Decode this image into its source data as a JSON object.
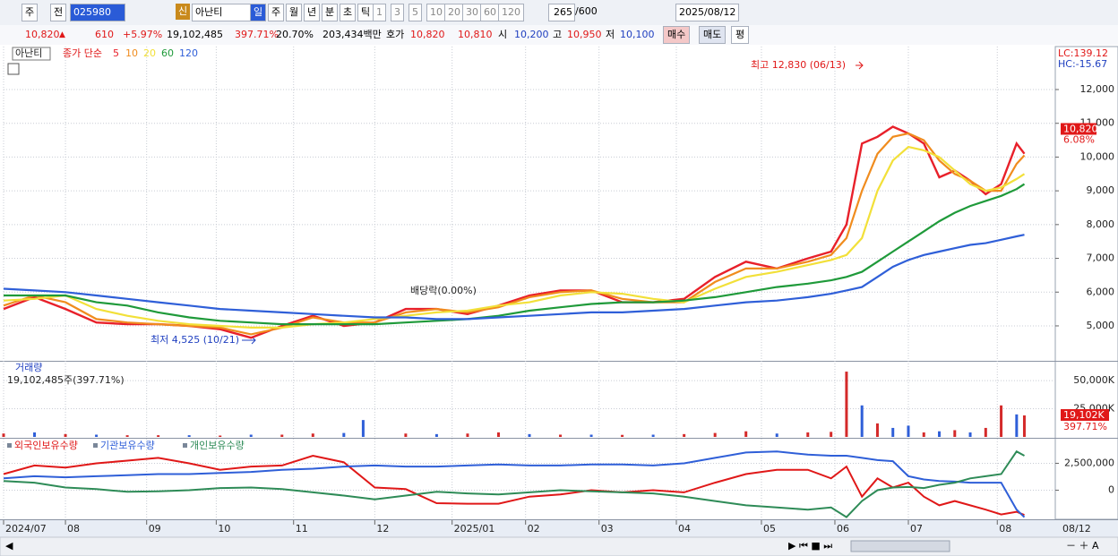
{
  "toolbar": {
    "period": "주",
    "prev": "전",
    "code": "025980",
    "new_tag": "신",
    "name": "아난티",
    "periods": [
      "일",
      "주",
      "월",
      "년",
      "분",
      "초",
      "틱"
    ],
    "intervals": [
      "1",
      "3",
      "5",
      "10",
      "20",
      "30",
      "60",
      "120"
    ],
    "count": "265",
    "max": "/600",
    "date": "2025/08/12"
  },
  "info": {
    "price": "10,820",
    "arrow": "▲",
    "change": "610",
    "change_pct": "+5.97%",
    "volume": "19,102,485",
    "volume_ratio": "397.71%",
    "turnover": "20.70%",
    "amount": "203,434백만",
    "quote_label": "호가",
    "ask": "10,820",
    "bid": "10,810",
    "open_label": "시",
    "open": "10,200",
    "high_label": "고",
    "high": "10,950",
    "low_label": "저",
    "low": "10,100",
    "buy": "매수",
    "sell": "매도",
    "avg": "평"
  },
  "chart_data": [
    {
      "type": "line",
      "title": "아난티",
      "subtitle": "종가 단순",
      "x": [
        0,
        8,
        16,
        24,
        32,
        40,
        48,
        56,
        64,
        72,
        80,
        88,
        96,
        104,
        112,
        120,
        128,
        136,
        144,
        152,
        160,
        168,
        176,
        184,
        192,
        200,
        208,
        214,
        218,
        222,
        226,
        230,
        234,
        238,
        242,
        246,
        250,
        254,
        258,
        262,
        264
      ],
      "series": [
        {
          "name": "5",
          "color": "#e8202a",
          "values": [
            5500,
            5850,
            5500,
            5100,
            5050,
            5050,
            5000,
            4900,
            4650,
            5000,
            5300,
            5000,
            5100,
            5500,
            5500,
            5350,
            5600,
            5900,
            6050,
            6050,
            5700,
            5700,
            5800,
            6450,
            6900,
            6700,
            7000,
            7200,
            8000,
            10400,
            10600,
            10900,
            10700,
            10400,
            9400,
            9600,
            9300,
            8900,
            9200,
            10400,
            10100
          ]
        },
        {
          "name": "10",
          "color": "#f08c1e",
          "values": [
            5600,
            5900,
            5700,
            5200,
            5100,
            5050,
            5000,
            4950,
            4750,
            4950,
            5250,
            5100,
            5100,
            5400,
            5500,
            5400,
            5550,
            5850,
            6000,
            6050,
            5800,
            5700,
            5700,
            6300,
            6700,
            6700,
            6900,
            7100,
            7600,
            9000,
            10100,
            10600,
            10700,
            10500,
            9900,
            9500,
            9300,
            9000,
            9000,
            9800,
            10050
          ]
        },
        {
          "name": "20",
          "color": "#f2e039",
          "values": [
            5750,
            5800,
            5900,
            5500,
            5300,
            5150,
            5050,
            5000,
            4950,
            4950,
            5050,
            5100,
            5200,
            5300,
            5400,
            5450,
            5600,
            5700,
            5900,
            6000,
            5950,
            5800,
            5700,
            6100,
            6450,
            6600,
            6800,
            6950,
            7100,
            7600,
            9000,
            9900,
            10300,
            10200,
            10000,
            9600,
            9200,
            9000,
            9100,
            9350,
            9500
          ]
        },
        {
          "name": "60",
          "color": "#1f9a3a",
          "values": [
            5900,
            5900,
            5900,
            5700,
            5600,
            5400,
            5250,
            5150,
            5100,
            5050,
            5050,
            5050,
            5050,
            5100,
            5150,
            5200,
            5300,
            5450,
            5550,
            5650,
            5700,
            5700,
            5750,
            5850,
            6000,
            6150,
            6250,
            6350,
            6450,
            6600,
            6900,
            7200,
            7500,
            7800,
            8100,
            8350,
            8550,
            8700,
            8850,
            9050,
            9200
          ]
        },
        {
          "name": "120",
          "color": "#2f5fd8",
          "values": [
            6100,
            6050,
            6000,
            5900,
            5800,
            5700,
            5600,
            5500,
            5450,
            5400,
            5350,
            5300,
            5250,
            5250,
            5200,
            5200,
            5250,
            5300,
            5350,
            5400,
            5400,
            5450,
            5500,
            5600,
            5700,
            5750,
            5850,
            5950,
            6050,
            6150,
            6450,
            6750,
            6950,
            7100,
            7200,
            7300,
            7400,
            7450,
            7550,
            7650,
            7700
          ]
        }
      ],
      "xlim": [
        0,
        272
      ],
      "ylim": [
        3965,
        13273
      ],
      "yticks": [
        {
          "value": 5000,
          "label": "5,000"
        },
        {
          "value": 6000,
          "label": "6,000"
        },
        {
          "value": 7000,
          "label": "7,000"
        },
        {
          "value": 8000,
          "label": "8,000"
        },
        {
          "value": 9000,
          "label": "9,000"
        },
        {
          "value": 10000,
          "label": "10,000"
        },
        {
          "value": 11000,
          "label": "11,000"
        },
        {
          "value": 12000,
          "label": "12,000"
        }
      ],
      "xticks": [
        {
          "value": 0,
          "label": "2024/07"
        },
        {
          "value": 16,
          "label": "08"
        },
        {
          "value": 37,
          "label": "09"
        },
        {
          "value": 55,
          "label": "10"
        },
        {
          "value": 75,
          "label": "11"
        },
        {
          "value": 96,
          "label": "12"
        },
        {
          "value": 116,
          "label": "2025/01"
        },
        {
          "value": 135,
          "label": "02"
        },
        {
          "value": 154,
          "label": "03"
        },
        {
          "value": 174,
          "label": "04"
        },
        {
          "value": 196,
          "label": "05"
        },
        {
          "value": 215,
          "label": "06"
        },
        {
          "value": 234,
          "label": "07"
        },
        {
          "value": 257,
          "label": "08"
        }
      ],
      "grid": true,
      "annotations": [
        "최고 12,830 (06/13)",
        "최저 4,525 (10/21)",
        "배당락(0.00%)"
      ],
      "last_price": {
        "value": 10820,
        "label": "10,820"
      },
      "change_label": "6.08%",
      "lc": "LC:139.12",
      "hc": "HC:-15.67",
      "end_date": "08/12"
    },
    {
      "type": "bar",
      "title": "거래량",
      "subtitle": "19,102,485주(397.71%)",
      "x": [
        0,
        8,
        16,
        24,
        32,
        40,
        48,
        56,
        64,
        72,
        80,
        88,
        93,
        104,
        112,
        120,
        128,
        136,
        144,
        152,
        160,
        168,
        176,
        184,
        192,
        200,
        208,
        214,
        218,
        222,
        226,
        230,
        234,
        238,
        242,
        246,
        250,
        254,
        258,
        262,
        264
      ],
      "values": [
        3000,
        4000,
        2500,
        2000,
        1500,
        1500,
        1500,
        1200,
        2000,
        2000,
        3000,
        3500,
        15000,
        3000,
        2500,
        3000,
        4000,
        2500,
        2000,
        2000,
        1800,
        2000,
        2500,
        3500,
        5000,
        3000,
        4000,
        4500,
        58000,
        28000,
        12000,
        8000,
        10000,
        4000,
        5000,
        6000,
        4000,
        8000,
        28000,
        20000,
        19102
      ],
      "colors": [
        "#d42a2a",
        "#2f5fd8",
        "#d42a2a",
        "#2f5fd8",
        "#d42a2a",
        "#d42a2a",
        "#2f5fd8",
        "#d42a2a",
        "#2f5fd8",
        "#d42a2a",
        "#d42a2a",
        "#2f5fd8",
        "#2f5fd8",
        "#d42a2a",
        "#2f5fd8",
        "#d42a2a",
        "#d42a2a",
        "#2f5fd8",
        "#d42a2a",
        "#2f5fd8",
        "#d42a2a",
        "#2f5fd8",
        "#d42a2a",
        "#d42a2a",
        "#d42a2a",
        "#2f5fd8",
        "#d42a2a",
        "#d42a2a",
        "#d42a2a",
        "#2f5fd8",
        "#d42a2a",
        "#2f5fd8",
        "#2f5fd8",
        "#d42a2a",
        "#2f5fd8",
        "#d42a2a",
        "#2f5fd8",
        "#d42a2a",
        "#d42a2a",
        "#2f5fd8",
        "#d42a2a"
      ],
      "ylim": [
        0,
        66000
      ],
      "yticks": [
        {
          "value": 50000,
          "label": "50,000K"
        },
        {
          "value": 25000,
          "label": "25,000K"
        }
      ],
      "last_volume": {
        "value": 19102,
        "label": "19,102K"
      },
      "ratio_label": "397.71%"
    },
    {
      "type": "line",
      "x": [
        0,
        8,
        16,
        24,
        32,
        40,
        48,
        56,
        64,
        72,
        80,
        88,
        96,
        104,
        112,
        120,
        128,
        136,
        144,
        152,
        160,
        168,
        176,
        184,
        192,
        200,
        208,
        214,
        218,
        222,
        226,
        230,
        234,
        238,
        242,
        246,
        250,
        254,
        258,
        262,
        264
      ],
      "series": [
        {
          "name": "외국인보유수량",
          "color": "#e01818",
          "values": [
            1500000,
            2300000,
            2100000,
            2500000,
            2750000,
            3000000,
            2500000,
            1900000,
            2200000,
            2300000,
            3200000,
            2600000,
            250000,
            100000,
            -1200000,
            -1250000,
            -1250000,
            -600000,
            -400000,
            0,
            -200000,
            0,
            -200000,
            700000,
            1500000,
            1900000,
            1900000,
            1100000,
            2200000,
            -600000,
            1100000,
            250000,
            700000,
            -600000,
            -1400000,
            -1000000,
            -1400000,
            -1800000,
            -2250000,
            -2000000,
            -2300000
          ]
        },
        {
          "name": "기관보유수량",
          "color": "#2f5fd8",
          "values": [
            1100000,
            1300000,
            1200000,
            1300000,
            1400000,
            1500000,
            1500000,
            1600000,
            1700000,
            1900000,
            2000000,
            2200000,
            2300000,
            2200000,
            2200000,
            2300000,
            2400000,
            2300000,
            2300000,
            2400000,
            2400000,
            2300000,
            2500000,
            3000000,
            3500000,
            3600000,
            3300000,
            3200000,
            3200000,
            3000000,
            2800000,
            2700000,
            1300000,
            1000000,
            850000,
            800000,
            700000,
            700000,
            700000,
            -1800000,
            -2500000
          ]
        },
        {
          "name": "개인보유수량",
          "color": "#2e8b57",
          "values": [
            850000,
            700000,
            250000,
            100000,
            -150000,
            -100000,
            0,
            200000,
            250000,
            100000,
            -200000,
            -500000,
            -850000,
            -500000,
            -150000,
            -300000,
            -400000,
            -200000,
            0,
            -100000,
            -200000,
            -300000,
            -600000,
            -1000000,
            -1400000,
            -1600000,
            -1800000,
            -1600000,
            -2500000,
            -1000000,
            0,
            250000,
            300000,
            200000,
            500000,
            700000,
            1100000,
            1300000,
            1500000,
            3600000,
            3200000
          ]
        }
      ],
      "ylim": [
        -2700000,
        4700000
      ],
      "yticks": [
        {
          "value": 2500000,
          "label": "2,500,000"
        },
        0
      ]
    }
  ]
}
